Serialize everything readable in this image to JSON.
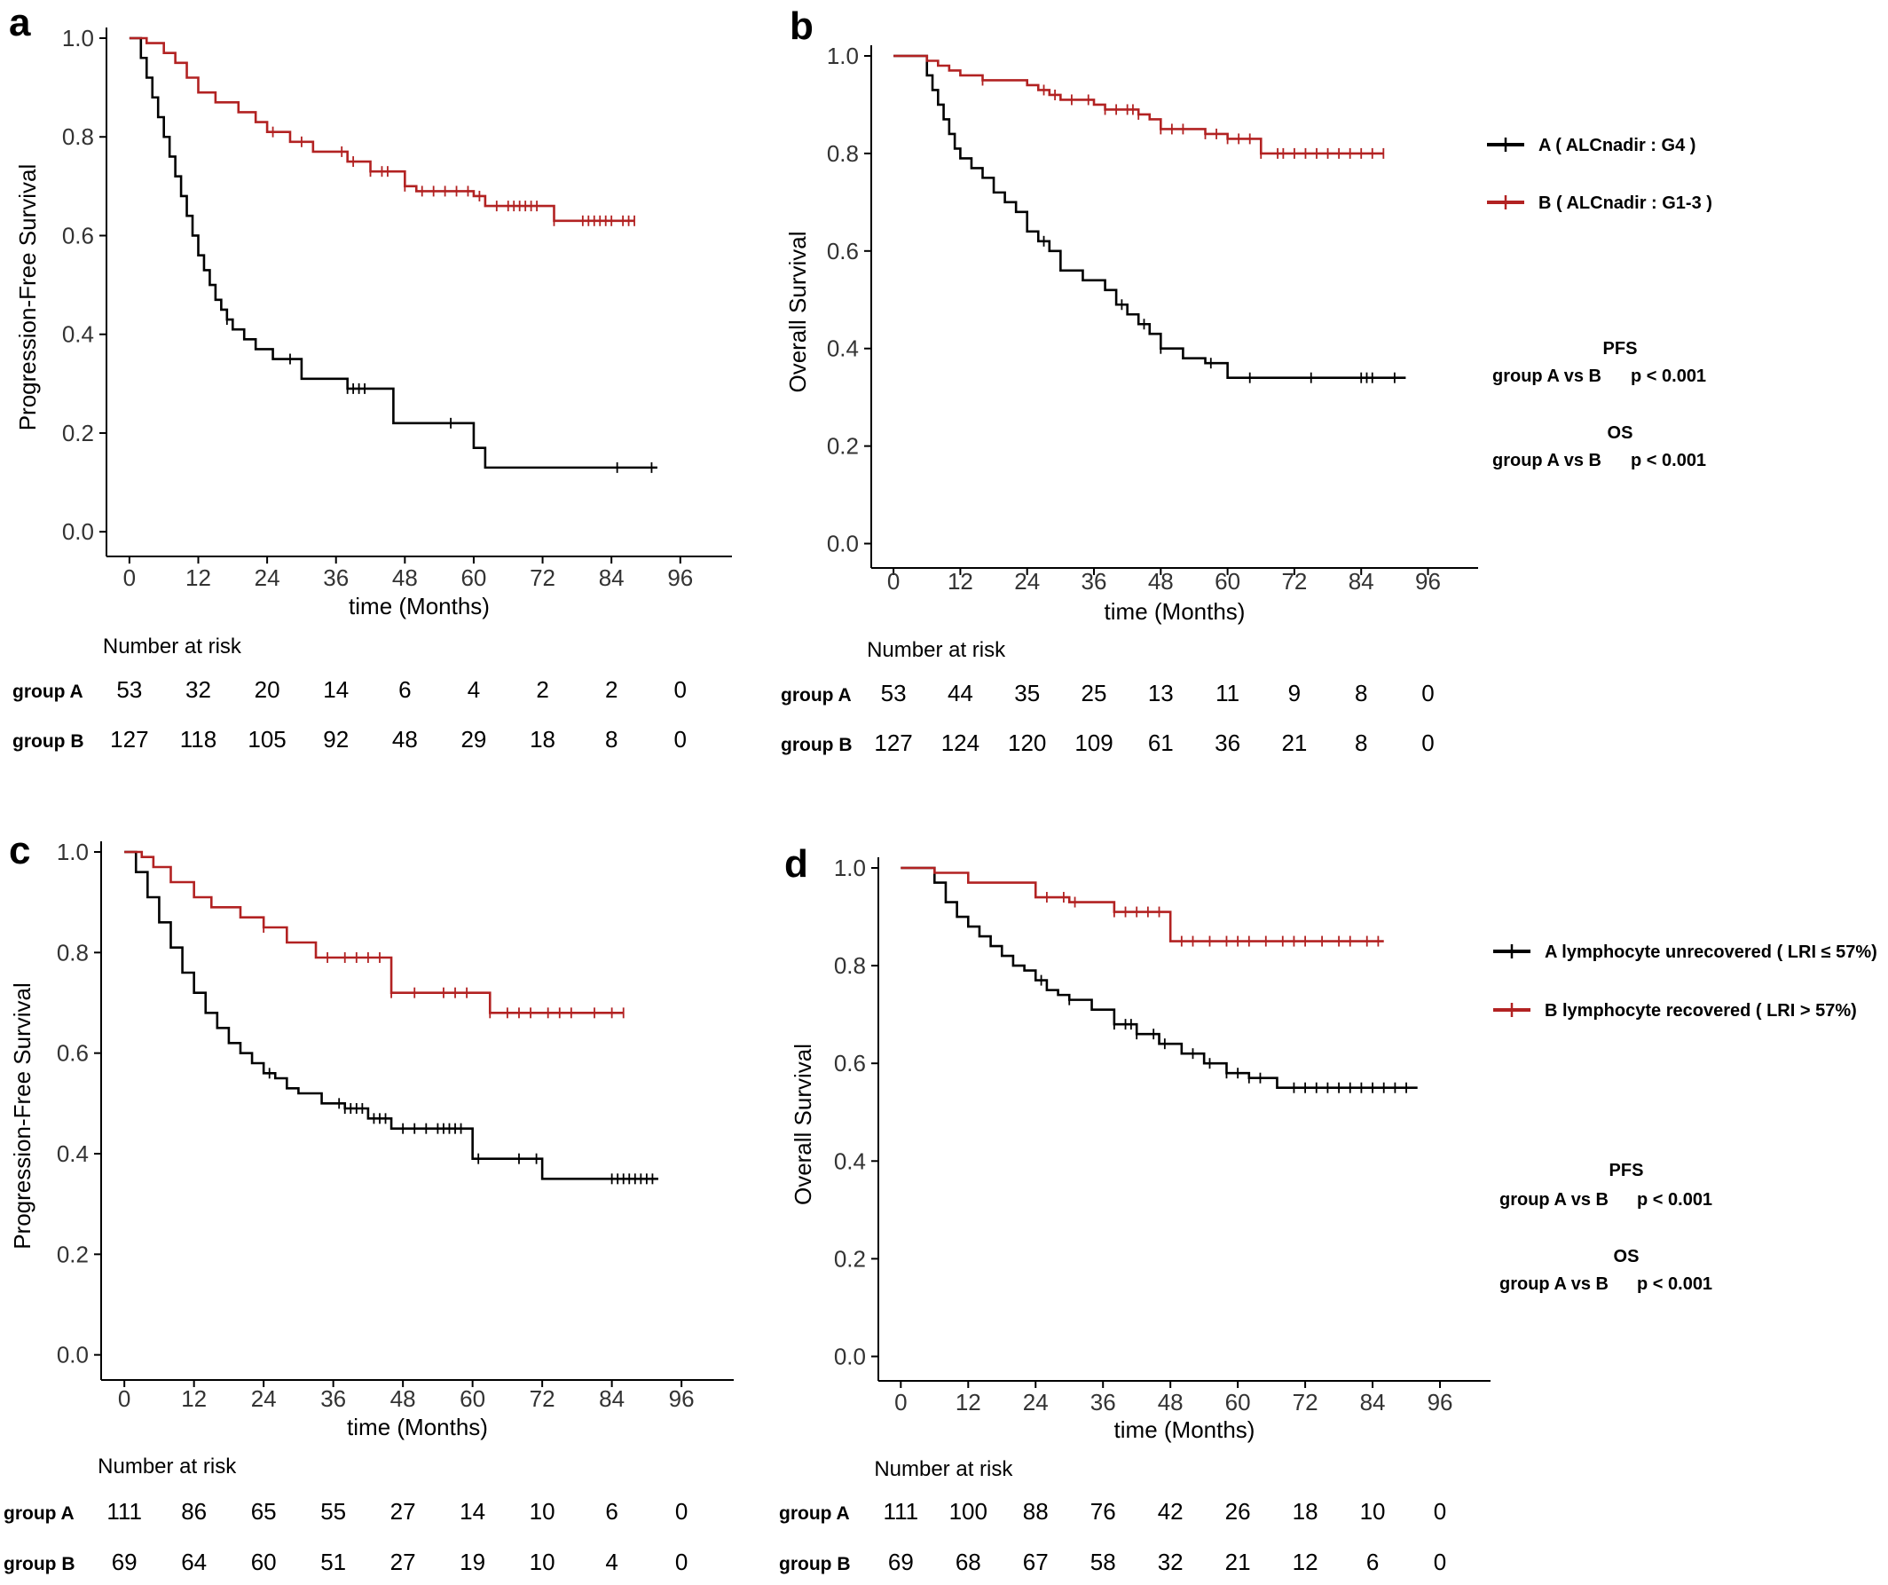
{
  "colors": {
    "group_a": "#000000",
    "group_b": "#b22222"
  },
  "chart_data": [
    {
      "id": "a",
      "type": "line",
      "panel_label": "a",
      "xlabel": "time (Months)",
      "ylabel": "Progression-Free Survival",
      "xticks": [
        0,
        12,
        24,
        36,
        48,
        60,
        72,
        84,
        96
      ],
      "yticks": [
        "0.0",
        "0.2",
        "0.4",
        "0.6",
        "0.8",
        "1.0"
      ],
      "xlim": [
        -4,
        105
      ],
      "ylim": [
        -0.05,
        1.0
      ],
      "series": [
        {
          "key": "A",
          "color": "#000000",
          "x": [
            0,
            2,
            3,
            4,
            5,
            6,
            7,
            8,
            9,
            10,
            11,
            12,
            13,
            14,
            15,
            16,
            17,
            18,
            20,
            22,
            25,
            30,
            38,
            46,
            60,
            62,
            92
          ],
          "y": [
            1.0,
            0.96,
            0.92,
            0.88,
            0.84,
            0.8,
            0.76,
            0.72,
            0.68,
            0.64,
            0.6,
            0.56,
            0.53,
            0.5,
            0.47,
            0.45,
            0.43,
            0.41,
            0.39,
            0.37,
            0.35,
            0.31,
            0.29,
            0.22,
            0.17,
            0.13,
            0.13
          ],
          "censor_x": [
            17,
            28,
            38,
            39,
            40,
            41,
            56,
            85,
            91
          ]
        },
        {
          "key": "B",
          "color": "#b22222",
          "x": [
            0,
            3,
            6,
            8,
            10,
            12,
            15,
            19,
            22,
            24,
            28,
            32,
            38,
            42,
            48,
            50,
            52,
            56,
            60,
            62,
            66,
            70,
            74,
            88
          ],
          "y": [
            1.0,
            0.99,
            0.97,
            0.95,
            0.92,
            0.89,
            0.87,
            0.85,
            0.83,
            0.81,
            0.79,
            0.77,
            0.75,
            0.73,
            0.7,
            0.69,
            0.69,
            0.69,
            0.68,
            0.66,
            0.66,
            0.66,
            0.63,
            0.63
          ],
          "censor_x": [
            25,
            30,
            37,
            39,
            42,
            44,
            45,
            48,
            51,
            53,
            55,
            57,
            59,
            61,
            64,
            66,
            67,
            68,
            69,
            70,
            71,
            74,
            79,
            80,
            81,
            82,
            83,
            84,
            86,
            87,
            88
          ]
        }
      ],
      "risk_table": {
        "title": "Number at risk",
        "rows": [
          {
            "label": "group A",
            "values": [
              "53",
              "32",
              "20",
              "14",
              "6",
              "4",
              "2",
              "2",
              "0"
            ]
          },
          {
            "label": "group B",
            "values": [
              "127",
              "118",
              "105",
              "92",
              "48",
              "29",
              "18",
              "8",
              "0"
            ]
          }
        ]
      }
    },
    {
      "id": "b",
      "type": "line",
      "panel_label": "b",
      "xlabel": "time (Months)",
      "ylabel": "Overall Survival",
      "xticks": [
        0,
        12,
        24,
        36,
        48,
        60,
        72,
        84,
        96
      ],
      "yticks": [
        "0.0",
        "0.2",
        "0.4",
        "0.6",
        "0.8",
        "1.0"
      ],
      "xlim": [
        -4,
        105
      ],
      "ylim": [
        -0.05,
        1.0
      ],
      "series": [
        {
          "key": "A",
          "color": "#000000",
          "x": [
            0,
            6,
            7,
            8,
            9,
            10,
            11,
            12,
            14,
            16,
            18,
            20,
            22,
            24,
            26,
            28,
            30,
            34,
            38,
            40,
            42,
            44,
            46,
            48,
            52,
            56,
            60,
            92
          ],
          "y": [
            1.0,
            0.96,
            0.93,
            0.9,
            0.87,
            0.84,
            0.81,
            0.79,
            0.77,
            0.75,
            0.72,
            0.7,
            0.68,
            0.64,
            0.62,
            0.6,
            0.56,
            0.54,
            0.52,
            0.49,
            0.47,
            0.45,
            0.43,
            0.4,
            0.38,
            0.37,
            0.34,
            0.34
          ],
          "censor_x": [
            27,
            41,
            45,
            48,
            57,
            64,
            75,
            84,
            85,
            86,
            90
          ]
        },
        {
          "key": "B",
          "color": "#b22222",
          "x": [
            0,
            6,
            8,
            10,
            12,
            16,
            20,
            24,
            26,
            28,
            30,
            36,
            38,
            44,
            46,
            48,
            56,
            60,
            66,
            70,
            88
          ],
          "y": [
            1.0,
            0.99,
            0.98,
            0.97,
            0.96,
            0.95,
            0.95,
            0.94,
            0.93,
            0.92,
            0.91,
            0.9,
            0.89,
            0.88,
            0.87,
            0.85,
            0.84,
            0.83,
            0.8,
            0.8,
            0.8
          ],
          "censor_x": [
            16,
            27,
            29,
            32,
            35,
            38,
            40,
            42,
            43,
            44,
            48,
            50,
            52,
            56,
            58,
            60,
            62,
            64,
            66,
            69,
            70,
            72,
            74,
            76,
            78,
            80,
            82,
            84,
            86,
            88
          ]
        }
      ],
      "risk_table": {
        "title": "Number at risk",
        "rows": [
          {
            "label": "group A",
            "values": [
              "53",
              "44",
              "35",
              "25",
              "13",
              "11",
              "9",
              "8",
              "0"
            ]
          },
          {
            "label": "group B",
            "values": [
              "127",
              "124",
              "120",
              "109",
              "61",
              "36",
              "21",
              "8",
              "0"
            ]
          }
        ]
      },
      "legend": [
        {
          "key": "A",
          "text": "A ( ALCnadir : G4    )"
        },
        {
          "key": "B",
          "text": "B ( ALCnadir : G1-3 )"
        }
      ],
      "stats": [
        {
          "title": "PFS",
          "comparison": "group A vs B",
          "p": "p < 0.001"
        },
        {
          "title": "OS",
          "comparison": "group A vs B",
          "p": "p < 0.001"
        }
      ]
    },
    {
      "id": "c",
      "type": "line",
      "panel_label": "c",
      "xlabel": "time (Months)",
      "ylabel": "Progression-Free Survival",
      "xticks": [
        0,
        12,
        24,
        36,
        48,
        60,
        72,
        84,
        96
      ],
      "yticks": [
        "0.0",
        "0.2",
        "0.4",
        "0.6",
        "0.8",
        "1.0"
      ],
      "xlim": [
        -4,
        105
      ],
      "ylim": [
        -0.05,
        1.0
      ],
      "series": [
        {
          "key": "A",
          "color": "#000000",
          "x": [
            0,
            2,
            4,
            6,
            8,
            10,
            12,
            14,
            16,
            18,
            20,
            22,
            24,
            26,
            28,
            30,
            34,
            38,
            42,
            46,
            50,
            55,
            60,
            72,
            92
          ],
          "y": [
            1.0,
            0.96,
            0.91,
            0.86,
            0.81,
            0.76,
            0.72,
            0.68,
            0.65,
            0.62,
            0.6,
            0.58,
            0.56,
            0.55,
            0.53,
            0.52,
            0.5,
            0.49,
            0.47,
            0.45,
            0.45,
            0.45,
            0.39,
            0.35,
            0.35
          ],
          "censor_x": [
            25,
            37,
            38,
            39,
            40,
            41,
            43,
            44,
            45,
            48,
            50,
            52,
            54,
            55,
            56,
            57,
            58,
            61,
            68,
            71,
            84,
            85,
            86,
            87,
            88,
            89,
            90,
            91
          ]
        },
        {
          "key": "B",
          "color": "#b22222",
          "x": [
            0,
            3,
            5,
            8,
            12,
            15,
            20,
            24,
            28,
            33,
            46,
            60,
            63,
            86
          ],
          "y": [
            1.0,
            0.99,
            0.97,
            0.94,
            0.91,
            0.89,
            0.87,
            0.85,
            0.82,
            0.79,
            0.72,
            0.72,
            0.68,
            0.68
          ],
          "censor_x": [
            24,
            35,
            38,
            40,
            42,
            44,
            46,
            50,
            55,
            57,
            59,
            63,
            66,
            68,
            70,
            73,
            75,
            77,
            81,
            84,
            86
          ]
        }
      ],
      "risk_table": {
        "title": "Number at risk",
        "rows": [
          {
            "label": "group A",
            "values": [
              "111",
              "86",
              "65",
              "55",
              "27",
              "14",
              "10",
              "6",
              "0"
            ]
          },
          {
            "label": "group B",
            "values": [
              "69",
              "64",
              "60",
              "51",
              "27",
              "19",
              "10",
              "4",
              "0"
            ]
          }
        ]
      }
    },
    {
      "id": "d",
      "type": "line",
      "panel_label": "d",
      "xlabel": "time (Months)",
      "ylabel": "Overall Survival",
      "xticks": [
        0,
        12,
        24,
        36,
        48,
        60,
        72,
        84,
        96
      ],
      "yticks": [
        "0.0",
        "0.2",
        "0.4",
        "0.6",
        "0.8",
        "1.0"
      ],
      "xlim": [
        -4,
        105
      ],
      "ylim": [
        -0.05,
        1.0
      ],
      "series": [
        {
          "key": "A",
          "color": "#000000",
          "x": [
            0,
            6,
            8,
            10,
            12,
            14,
            16,
            18,
            20,
            22,
            24,
            26,
            28,
            30,
            34,
            38,
            42,
            46,
            50,
            54,
            58,
            62,
            67,
            92
          ],
          "y": [
            1.0,
            0.97,
            0.93,
            0.9,
            0.88,
            0.86,
            0.84,
            0.82,
            0.8,
            0.79,
            0.77,
            0.75,
            0.74,
            0.73,
            0.71,
            0.68,
            0.66,
            0.64,
            0.62,
            0.6,
            0.58,
            0.57,
            0.55,
            0.55
          ],
          "censor_x": [
            25,
            30,
            38,
            40,
            41,
            42,
            45,
            47,
            52,
            55,
            58,
            60,
            62,
            64,
            70,
            72,
            74,
            76,
            78,
            80,
            82,
            84,
            86,
            88,
            90
          ]
        },
        {
          "key": "B",
          "color": "#b22222",
          "x": [
            0,
            6,
            12,
            24,
            30,
            38,
            48,
            86
          ],
          "y": [
            1.0,
            0.99,
            0.97,
            0.94,
            0.93,
            0.91,
            0.85,
            0.85
          ],
          "censor_x": [
            26,
            29,
            31,
            38,
            40,
            42,
            44,
            46,
            50,
            52,
            55,
            58,
            60,
            62,
            65,
            68,
            70,
            72,
            75,
            78,
            80,
            83,
            85
          ]
        }
      ],
      "risk_table": {
        "title": "Number at risk",
        "rows": [
          {
            "label": "group A",
            "values": [
              "111",
              "100",
              "88",
              "76",
              "42",
              "26",
              "18",
              "10",
              "0"
            ]
          },
          {
            "label": "group B",
            "values": [
              "69",
              "68",
              "67",
              "58",
              "32",
              "21",
              "12",
              "6",
              "0"
            ]
          }
        ]
      },
      "legend": [
        {
          "key": "A",
          "text": "A lymphocyte unrecovered ( LRI ≤ 57%)"
        },
        {
          "key": "B",
          "text": "B lymphocyte recovered     ( LRI > 57%)"
        }
      ],
      "stats": [
        {
          "title": "PFS",
          "comparison": "group A vs B",
          "p": "p < 0.001"
        },
        {
          "title": "OS",
          "comparison": "group A vs B",
          "p": "p < 0.001"
        }
      ]
    }
  ]
}
